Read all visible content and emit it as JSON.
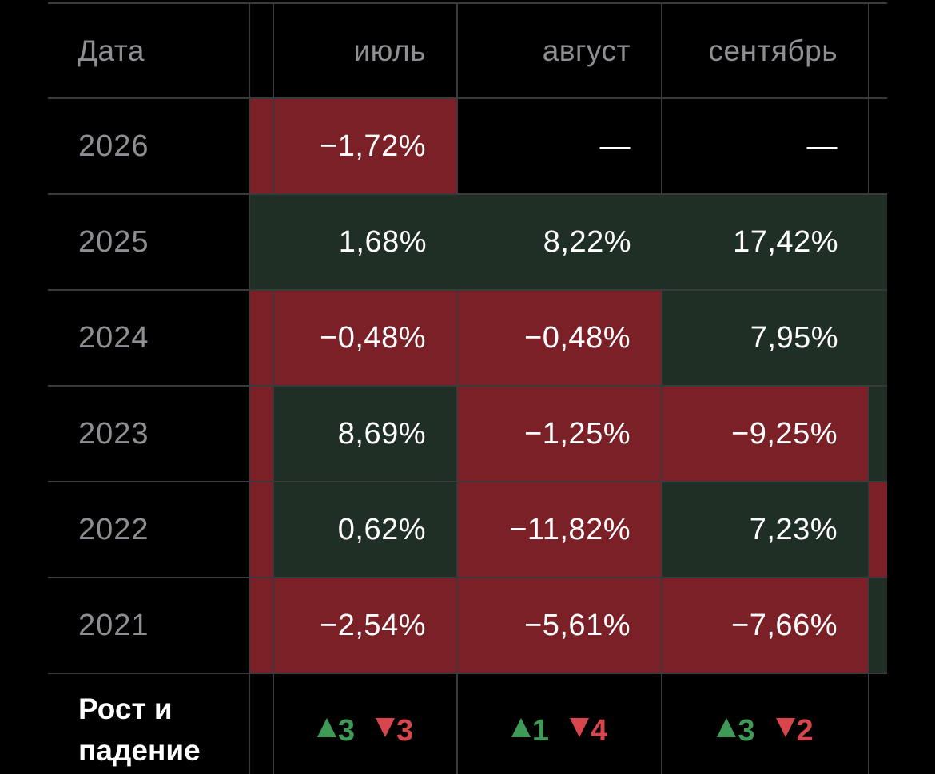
{
  "header": {
    "date_label": "Дата",
    "months": [
      "июль",
      "август",
      "сентябрь"
    ]
  },
  "rows": [
    {
      "year": "2026",
      "values": [
        "−1,72%",
        "—",
        "—"
      ],
      "signs": [
        "neg",
        "none",
        "none"
      ],
      "edge": "none",
      "strip": "neg"
    },
    {
      "year": "2025",
      "values": [
        "1,68%",
        "8,22%",
        "17,42%"
      ],
      "signs": [
        "pos",
        "pos",
        "pos"
      ],
      "edge": "pos",
      "strip": "pos"
    },
    {
      "year": "2024",
      "values": [
        "−0,48%",
        "−0,48%",
        "7,95%"
      ],
      "signs": [
        "neg",
        "neg",
        "pos"
      ],
      "edge": "pos",
      "strip": "neg"
    },
    {
      "year": "2023",
      "values": [
        "8,69%",
        "−1,25%",
        "−9,25%"
      ],
      "signs": [
        "pos",
        "neg",
        "neg"
      ],
      "edge": "pos",
      "strip": "neg"
    },
    {
      "year": "2022",
      "values": [
        "0,62%",
        "−11,82%",
        "7,23%"
      ],
      "signs": [
        "pos",
        "neg",
        "pos"
      ],
      "edge": "neg",
      "strip": "neg"
    },
    {
      "year": "2021",
      "values": [
        "−2,54%",
        "−5,61%",
        "−7,66%"
      ],
      "signs": [
        "neg",
        "neg",
        "neg"
      ],
      "edge": "pos",
      "strip": "neg"
    }
  ],
  "summary": {
    "label_line1": "Рост и",
    "label_line2": "падение",
    "counts": [
      {
        "up": "3",
        "down": "3"
      },
      {
        "up": "1",
        "down": "4"
      },
      {
        "up": "3",
        "down": "2"
      }
    ]
  },
  "colors": {
    "negative": "#7b2026",
    "positive": "#1f2f25",
    "up": "#3f9a57",
    "down": "#d9454d"
  }
}
